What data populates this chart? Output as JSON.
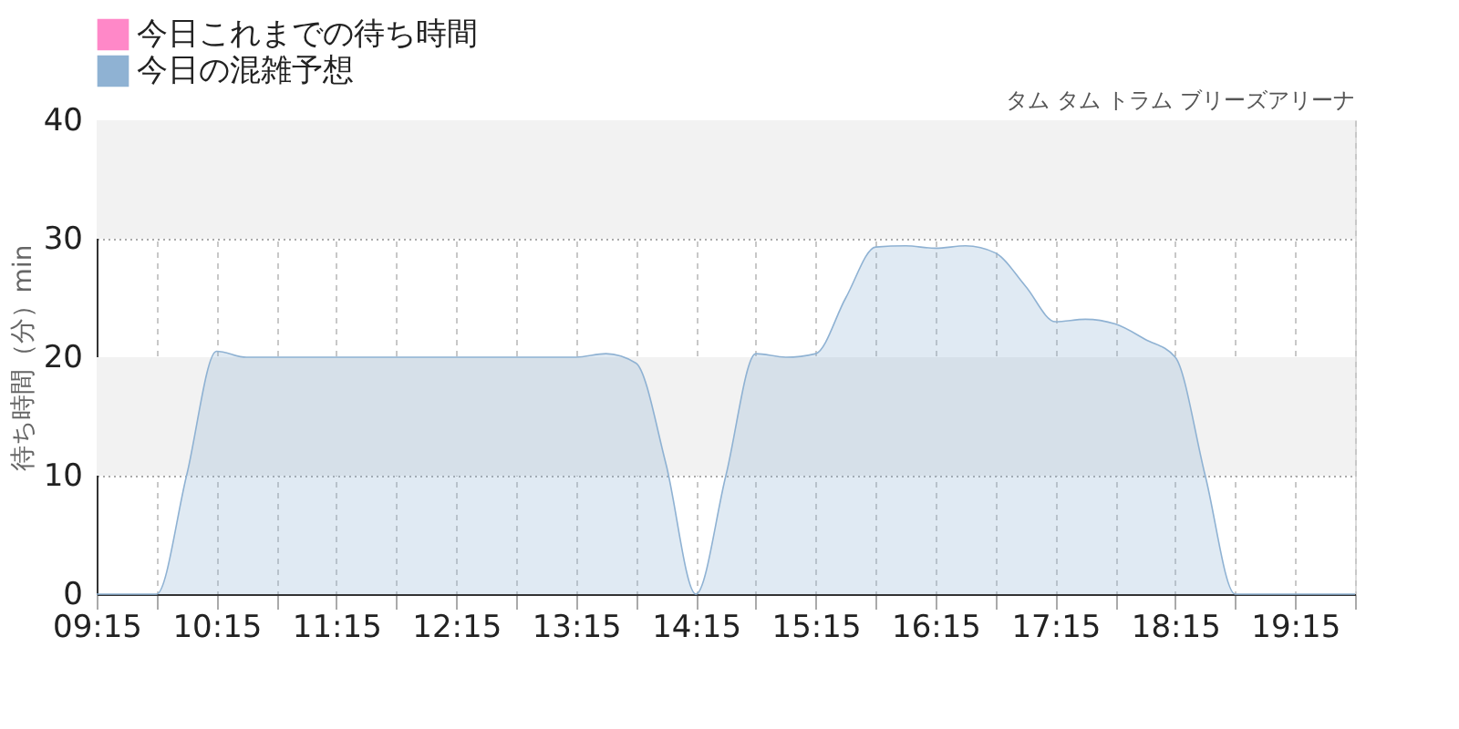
{
  "chart_data": {
    "type": "area",
    "subtitle": "タム タム トラム ブリーズアリーナ",
    "ylabel": "待ち時間（分）min",
    "x": [
      9.25,
      9.5,
      9.75,
      10.0,
      10.25,
      10.5,
      10.75,
      11.0,
      11.25,
      11.5,
      11.75,
      12.0,
      12.25,
      12.5,
      12.75,
      13.0,
      13.25,
      13.5,
      13.75,
      14.0,
      14.25,
      14.5,
      14.75,
      15.0,
      15.25,
      15.5,
      15.75,
      16.0,
      16.25,
      16.5,
      16.75,
      17.0,
      17.25,
      17.5,
      17.75,
      18.0,
      18.25,
      18.5,
      18.75,
      19.0,
      19.25,
      19.5,
      19.75
    ],
    "series": [
      {
        "name": "今日これまでの待ち時間",
        "color": "#ff88c8",
        "values": [
          null,
          null,
          null,
          null,
          null,
          null,
          null,
          null,
          null,
          null,
          null,
          null,
          null,
          null,
          null,
          null,
          null,
          null,
          null,
          null,
          null,
          null,
          null,
          null,
          null,
          null,
          null,
          null,
          null,
          null,
          null,
          null,
          null,
          null,
          null,
          null,
          null,
          null,
          null,
          null,
          null,
          null,
          null
        ]
      },
      {
        "name": "今日の混雑予想",
        "color": "#8fb2d3",
        "values": [
          0,
          0,
          0,
          10,
          20.5,
          20,
          20,
          20,
          20,
          20,
          20,
          20,
          20,
          20,
          20,
          20,
          20,
          20.3,
          19.5,
          11,
          0,
          10,
          20.3,
          20,
          20.3,
          25,
          29.3,
          29.4,
          29.2,
          29.4,
          28.8,
          26,
          23,
          23.2,
          22.8,
          21.5,
          20,
          10,
          0,
          0,
          0,
          0,
          0
        ]
      }
    ],
    "xlim": [
      9.25,
      19.75
    ],
    "xticks": [
      {
        "value": 9.25,
        "label": "09:15"
      },
      {
        "value": 9.75,
        "label": null
      },
      {
        "value": 10.25,
        "label": "10:15"
      },
      {
        "value": 10.75,
        "label": null
      },
      {
        "value": 11.25,
        "label": "11:15"
      },
      {
        "value": 11.75,
        "label": null
      },
      {
        "value": 12.25,
        "label": "12:15"
      },
      {
        "value": 12.75,
        "label": null
      },
      {
        "value": 13.25,
        "label": "13:15"
      },
      {
        "value": 13.75,
        "label": null
      },
      {
        "value": 14.25,
        "label": "14:15"
      },
      {
        "value": 14.75,
        "label": null
      },
      {
        "value": 15.25,
        "label": "15:15"
      },
      {
        "value": 15.75,
        "label": null
      },
      {
        "value": 16.25,
        "label": "16:15"
      },
      {
        "value": 16.75,
        "label": null
      },
      {
        "value": 17.25,
        "label": "17:15"
      },
      {
        "value": 17.75,
        "label": null
      },
      {
        "value": 18.25,
        "label": "18:15"
      },
      {
        "value": 18.75,
        "label": null
      },
      {
        "value": 19.25,
        "label": "19:15"
      },
      {
        "value": 19.75,
        "label": null
      }
    ],
    "ylim": [
      0,
      40
    ],
    "yticks": [
      0,
      10,
      20,
      30,
      40
    ],
    "bands": [
      {
        "axis": "y",
        "from": 10,
        "to": 20,
        "color": "#f2f2f2"
      },
      {
        "axis": "y",
        "from": 30,
        "to": 40,
        "color": "#f2f2f2"
      }
    ],
    "grid": true,
    "legend": "top left"
  }
}
